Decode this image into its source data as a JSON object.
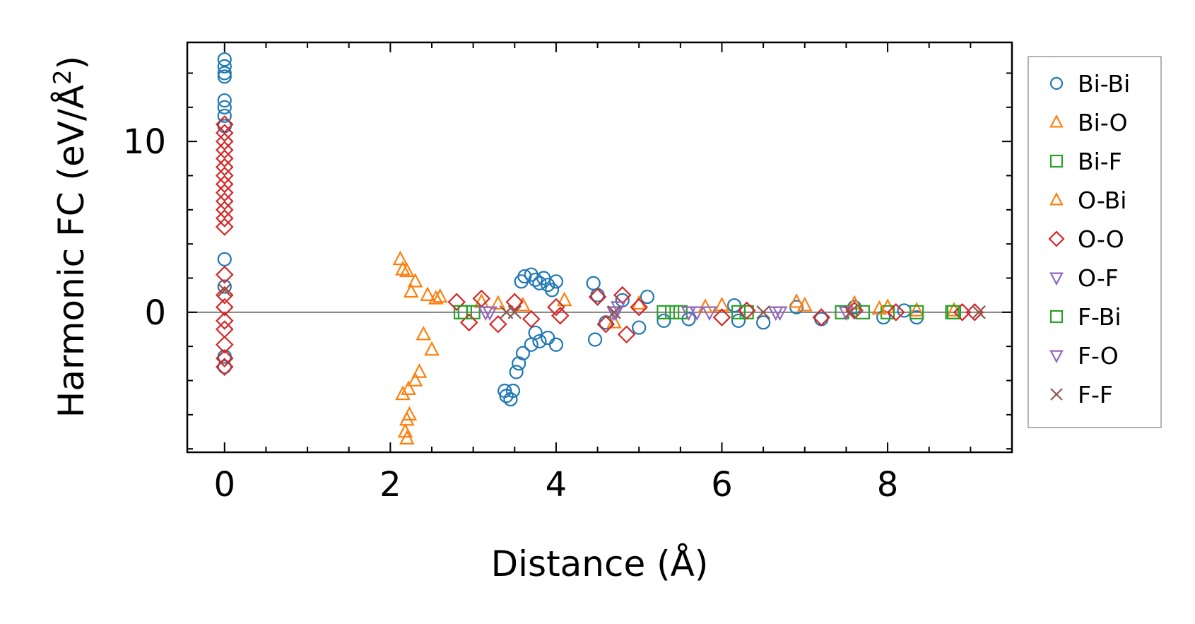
{
  "chart_data": {
    "type": "scatter",
    "xlabel": "Distance (Å)",
    "ylabel_main": "Harmonic FC (eV/Å",
    "ylabel_sup": "2",
    "ylabel_close": ")",
    "xlim": [
      -0.45,
      9.5
    ],
    "ylim": [
      -8.2,
      15.8
    ],
    "xticks": [
      0,
      2,
      4,
      6,
      8
    ],
    "xtick_labels": [
      "0",
      "2",
      "4",
      "6",
      "8"
    ],
    "yticks": [
      0,
      10
    ],
    "ytick_labels": [
      "0",
      "10"
    ],
    "x_minor_step": 0.5,
    "y_minor_step": 2,
    "zero_line": true,
    "grid": false,
    "legend_position": "outside-right",
    "series": [
      {
        "name": "Bi-Bi",
        "marker": "circle",
        "color": "#1f77b4",
        "points": [
          [
            0,
            14.8
          ],
          [
            0,
            14.4
          ],
          [
            0,
            14.0
          ],
          [
            0,
            13.8
          ],
          [
            0,
            12.4
          ],
          [
            0,
            12.0
          ],
          [
            0,
            11.5
          ],
          [
            0,
            10.9
          ],
          [
            0,
            3.1
          ],
          [
            0,
            1.5
          ],
          [
            0,
            -2.6
          ],
          [
            0,
            -3.2
          ],
          [
            3.38,
            -4.6
          ],
          [
            3.4,
            -4.9
          ],
          [
            3.45,
            -5.1
          ],
          [
            3.48,
            -4.6
          ],
          [
            3.52,
            -3.5
          ],
          [
            3.55,
            -3.0
          ],
          [
            3.6,
            -2.4
          ],
          [
            3.58,
            1.8
          ],
          [
            3.62,
            2.1
          ],
          [
            3.7,
            2.2
          ],
          [
            3.75,
            1.9
          ],
          [
            3.8,
            1.7
          ],
          [
            3.85,
            2.0
          ],
          [
            3.9,
            1.6
          ],
          [
            3.95,
            1.3
          ],
          [
            4.0,
            1.8
          ],
          [
            3.7,
            -1.9
          ],
          [
            3.8,
            -1.7
          ],
          [
            3.9,
            -1.5
          ],
          [
            4.0,
            -1.9
          ],
          [
            3.75,
            -1.2
          ],
          [
            4.45,
            1.7
          ],
          [
            4.47,
            -1.6
          ],
          [
            4.5,
            1.0
          ],
          [
            4.6,
            -0.6
          ],
          [
            4.8,
            0.7
          ],
          [
            5.0,
            -0.9
          ],
          [
            5.1,
            0.9
          ],
          [
            5.3,
            -0.5
          ],
          [
            5.6,
            -0.4
          ],
          [
            6.15,
            0.4
          ],
          [
            6.2,
            -0.5
          ],
          [
            6.5,
            -0.6
          ],
          [
            6.9,
            0.3
          ],
          [
            7.2,
            -0.4
          ],
          [
            7.6,
            0.3
          ],
          [
            7.95,
            -0.3
          ],
          [
            8.2,
            0.1
          ],
          [
            8.35,
            -0.3
          ]
        ]
      },
      {
        "name": "Bi-O",
        "marker": "triangle-up",
        "color": "#ff7f0e",
        "points": [
          [
            2.12,
            3.1
          ],
          [
            2.15,
            2.5
          ],
          [
            2.18,
            -7.0
          ],
          [
            2.2,
            -7.4
          ],
          [
            2.2,
            -6.3
          ],
          [
            2.23,
            -6.0
          ],
          [
            2.15,
            -4.8
          ],
          [
            2.22,
            -4.5
          ],
          [
            2.3,
            -4.0
          ],
          [
            2.35,
            -3.5
          ],
          [
            2.2,
            2.4
          ],
          [
            2.3,
            1.8
          ],
          [
            2.45,
            1.0
          ],
          [
            2.5,
            -2.2
          ],
          [
            2.6,
            0.9
          ],
          [
            3.1,
            0.6
          ],
          [
            3.6,
            0.4
          ],
          [
            4.1,
            0.7
          ],
          [
            5.0,
            0.5
          ],
          [
            6.0,
            0.4
          ],
          [
            6.9,
            0.6
          ],
          [
            7.6,
            0.5
          ],
          [
            8.0,
            0.3
          ],
          [
            8.35,
            0.1
          ],
          [
            8.8,
            0.1
          ]
        ]
      },
      {
        "name": "Bi-F",
        "marker": "square",
        "color": "#2ca02c",
        "points": [
          [
            2.85,
            0.0
          ],
          [
            3.0,
            0.0
          ],
          [
            5.3,
            0.0
          ],
          [
            5.5,
            0.0
          ],
          [
            6.3,
            0.0
          ],
          [
            7.45,
            0.0
          ],
          [
            8.0,
            0.0
          ],
          [
            8.35,
            0.0
          ],
          [
            8.8,
            0.0
          ]
        ]
      },
      {
        "name": "O-Bi",
        "marker": "triangle-up",
        "color": "#ff7f0e",
        "points": [
          [
            2.25,
            1.2
          ],
          [
            2.4,
            -1.3
          ],
          [
            2.55,
            0.8
          ],
          [
            3.3,
            0.5
          ],
          [
            4.7,
            -0.6
          ],
          [
            5.8,
            0.3
          ],
          [
            7.0,
            0.4
          ],
          [
            7.9,
            0.2
          ]
        ]
      },
      {
        "name": "O-O",
        "marker": "diamond",
        "color": "#d62728",
        "points": [
          [
            0,
            11.0
          ],
          [
            0,
            10.5
          ],
          [
            0,
            10.0
          ],
          [
            0,
            9.5
          ],
          [
            0,
            9.0
          ],
          [
            0,
            8.5
          ],
          [
            0,
            8.0
          ],
          [
            0,
            7.5
          ],
          [
            0,
            7.0
          ],
          [
            0,
            6.5
          ],
          [
            0,
            6.0
          ],
          [
            0,
            5.5
          ],
          [
            0,
            5.0
          ],
          [
            0,
            2.2
          ],
          [
            0,
            1.0
          ],
          [
            0,
            0.3
          ],
          [
            0,
            -0.5
          ],
          [
            0,
            -1.0
          ],
          [
            0,
            -1.9
          ],
          [
            0,
            -2.7
          ],
          [
            0,
            -3.2
          ],
          [
            2.8,
            0.6
          ],
          [
            2.95,
            -0.6
          ],
          [
            3.1,
            0.8
          ],
          [
            3.3,
            -0.7
          ],
          [
            3.5,
            0.6
          ],
          [
            3.7,
            -0.4
          ],
          [
            4.0,
            0.3
          ],
          [
            4.05,
            -0.2
          ],
          [
            4.5,
            0.9
          ],
          [
            4.6,
            -0.7
          ],
          [
            4.8,
            1.0
          ],
          [
            4.85,
            -1.3
          ],
          [
            5.0,
            0.3
          ],
          [
            6.0,
            -0.3
          ],
          [
            6.3,
            0.1
          ],
          [
            7.2,
            -0.3
          ],
          [
            7.6,
            0.1
          ],
          [
            8.1,
            0.0
          ],
          [
            8.9,
            0.0
          ],
          [
            9.05,
            0.0
          ]
        ]
      },
      {
        "name": "O-F",
        "marker": "triangle-down",
        "color": "#9467bd",
        "points": [
          [
            3.15,
            0.0
          ],
          [
            4.7,
            0.0
          ],
          [
            4.75,
            0.3
          ],
          [
            5.6,
            0.0
          ],
          [
            5.85,
            0.0
          ],
          [
            6.65,
            0.0
          ],
          [
            7.5,
            0.0
          ]
        ]
      },
      {
        "name": "F-Bi",
        "marker": "square",
        "color": "#2ca02c",
        "points": [
          [
            2.9,
            0.0
          ],
          [
            5.4,
            0.0
          ],
          [
            6.2,
            0.0
          ],
          [
            7.7,
            0.0
          ],
          [
            8.78,
            0.0
          ]
        ]
      },
      {
        "name": "F-O",
        "marker": "triangle-down",
        "color": "#9467bd",
        "points": [
          [
            3.2,
            0.0
          ],
          [
            4.72,
            0.0
          ],
          [
            5.7,
            0.0
          ],
          [
            6.7,
            0.0
          ]
        ]
      },
      {
        "name": "F-F",
        "marker": "x",
        "color": "#8c564b",
        "points": [
          [
            0,
            1.3
          ],
          [
            3.4,
            0.0
          ],
          [
            3.5,
            0.0
          ],
          [
            4.7,
            0.0
          ],
          [
            6.5,
            0.0
          ],
          [
            7.55,
            0.0
          ],
          [
            9.1,
            0.0
          ]
        ]
      }
    ]
  }
}
